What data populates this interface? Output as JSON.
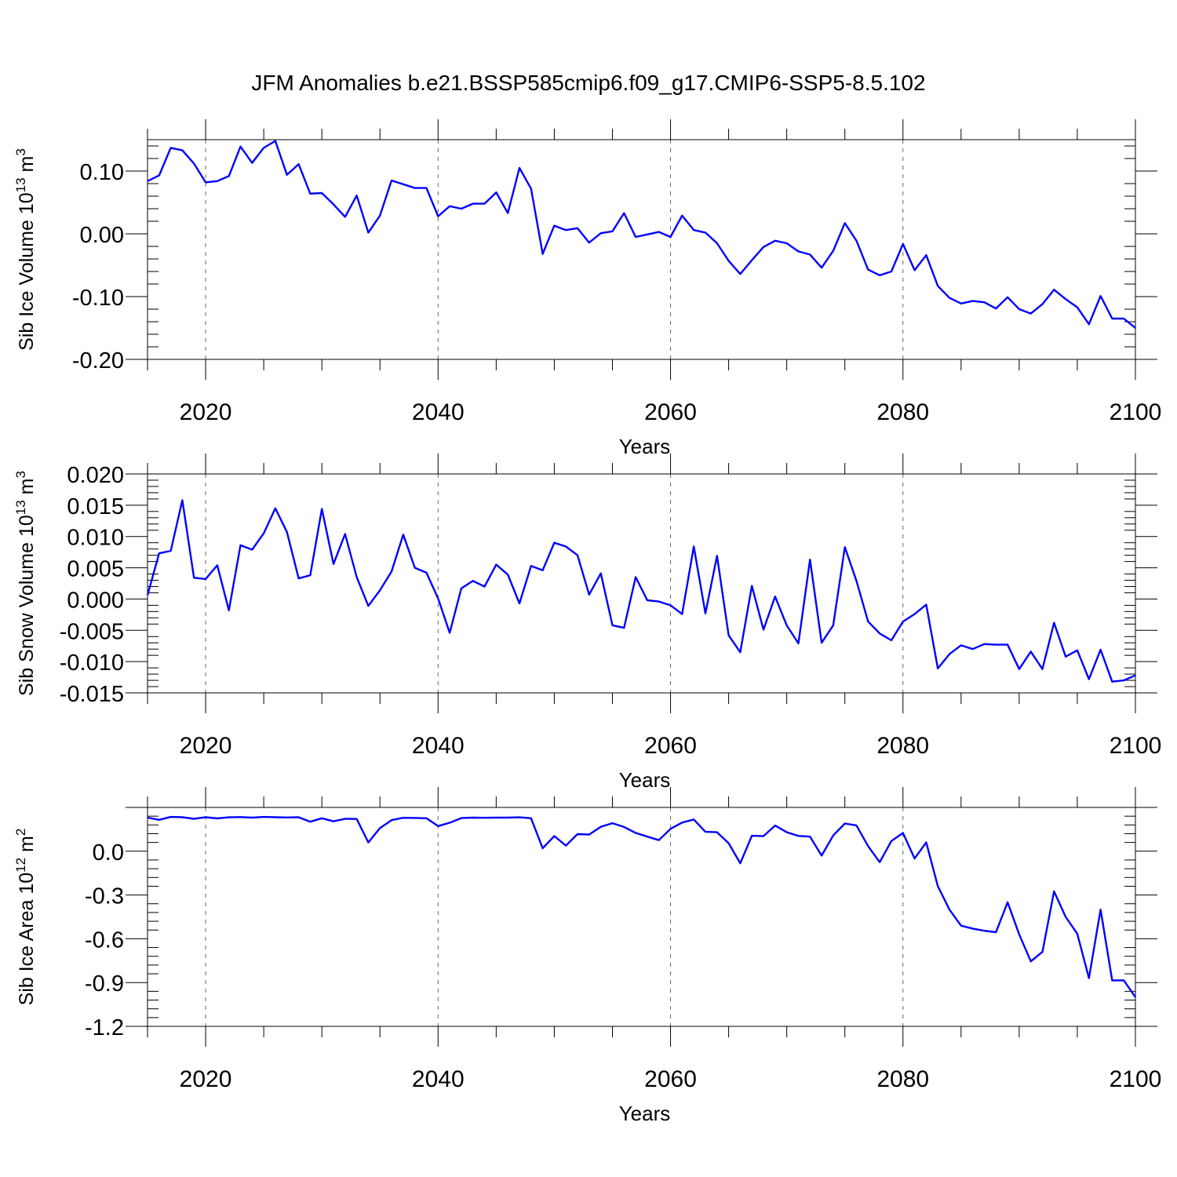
{
  "chart_data": {
    "title": "JFM Anomalies b.e21.BSSP585cmip6.f09_g17.CMIP6-SSP5-8.5.102",
    "line_color": "#0000ff",
    "panels": [
      {
        "type": "line",
        "name": "ice-volume",
        "ylabel": {
          "pre": "Sib Ice Volume 10",
          "exp": "13",
          "unit": " m",
          "unit_exp": "3"
        },
        "xlabel": "Years",
        "xlim": [
          2015,
          2100
        ],
        "ylim": [
          -0.2,
          0.15
        ],
        "xticks": [
          "2020",
          "2040",
          "2060",
          "2080",
          "2100"
        ],
        "yticks": [
          "0.10",
          "0.00",
          "-0.10",
          "-0.20"
        ],
        "years": [
          2015,
          2016,
          2017,
          2018,
          2019,
          2020,
          2021,
          2022,
          2023,
          2024,
          2025,
          2026,
          2027,
          2028,
          2029,
          2030,
          2031,
          2032,
          2033,
          2034,
          2035,
          2036,
          2037,
          2038,
          2039,
          2040,
          2041,
          2042,
          2043,
          2044,
          2045,
          2046,
          2047,
          2048,
          2049,
          2050,
          2051,
          2052,
          2053,
          2054,
          2055,
          2056,
          2057,
          2058,
          2059,
          2060,
          2061,
          2062,
          2063,
          2064,
          2065,
          2066,
          2067,
          2068,
          2069,
          2070,
          2071,
          2072,
          2073,
          2074,
          2075,
          2076,
          2077,
          2078,
          2079,
          2080,
          2081,
          2082,
          2083,
          2084,
          2085,
          2086,
          2087,
          2088,
          2089,
          2090,
          2091,
          2092,
          2093,
          2094,
          2095,
          2096,
          2097,
          2098,
          2099,
          2100
        ],
        "values": [
          0.084,
          0.093,
          0.137,
          0.133,
          0.112,
          0.082,
          0.084,
          0.092,
          0.139,
          0.113,
          0.137,
          0.148,
          0.094,
          0.111,
          0.064,
          0.065,
          0.047,
          0.027,
          0.061,
          0.002,
          0.029,
          0.085,
          0.079,
          0.073,
          0.073,
          0.028,
          0.044,
          0.04,
          0.048,
          0.048,
          0.066,
          0.033,
          0.105,
          0.072,
          -0.032,
          0.013,
          0.006,
          0.009,
          -0.014,
          0.001,
          0.004,
          0.033,
          -0.005,
          -0.001,
          0.003,
          -0.005,
          0.029,
          0.006,
          0.002,
          -0.015,
          -0.043,
          -0.064,
          -0.042,
          -0.021,
          -0.011,
          -0.015,
          -0.028,
          -0.033,
          -0.054,
          -0.027,
          0.017,
          -0.011,
          -0.057,
          -0.066,
          -0.06,
          -0.016,
          -0.058,
          -0.034,
          -0.083,
          -0.102,
          -0.111,
          -0.107,
          -0.109,
          -0.119,
          -0.101,
          -0.12,
          -0.127,
          -0.112,
          -0.089,
          -0.104,
          -0.117,
          -0.144,
          -0.099,
          -0.135,
          -0.135,
          -0.15
        ]
      },
      {
        "type": "line",
        "name": "snow-volume",
        "ylabel": {
          "pre": "Sib Snow Volume 10",
          "exp": "13",
          "unit": " m",
          "unit_exp": "3"
        },
        "xlabel": "Years",
        "xlim": [
          2015,
          2100
        ],
        "ylim": [
          -0.015,
          0.02
        ],
        "xticks": [
          "2020",
          "2040",
          "2060",
          "2080",
          "2100"
        ],
        "yticks": [
          "0.020",
          "0.015",
          "0.010",
          "0.005",
          "0.000",
          "-0.005",
          "-0.010",
          "-0.015"
        ],
        "years": [
          2015,
          2016,
          2017,
          2018,
          2019,
          2020,
          2021,
          2022,
          2023,
          2024,
          2025,
          2026,
          2027,
          2028,
          2029,
          2030,
          2031,
          2032,
          2033,
          2034,
          2035,
          2036,
          2037,
          2038,
          2039,
          2040,
          2041,
          2042,
          2043,
          2044,
          2045,
          2046,
          2047,
          2048,
          2049,
          2050,
          2051,
          2052,
          2053,
          2054,
          2055,
          2056,
          2057,
          2058,
          2059,
          2060,
          2061,
          2062,
          2063,
          2064,
          2065,
          2066,
          2067,
          2068,
          2069,
          2070,
          2071,
          2072,
          2073,
          2074,
          2075,
          2076,
          2077,
          2078,
          2079,
          2080,
          2081,
          2082,
          2083,
          2084,
          2085,
          2086,
          2087,
          2088,
          2089,
          2090,
          2091,
          2092,
          2093,
          2094,
          2095,
          2096,
          2097,
          2098,
          2099,
          2100
        ],
        "values": [
          0.0006,
          0.0073,
          0.0077,
          0.0158,
          0.0034,
          0.0032,
          0.0054,
          -0.0018,
          0.0086,
          0.0079,
          0.0105,
          0.0145,
          0.0107,
          0.0033,
          0.0038,
          0.0144,
          0.0056,
          0.0104,
          0.0035,
          -0.0011,
          0.0014,
          0.0044,
          0.0103,
          0.005,
          0.0042,
          0.0001,
          -0.0054,
          0.0017,
          0.0029,
          0.002,
          0.0055,
          0.0039,
          -0.0007,
          0.0053,
          0.0046,
          0.009,
          0.0084,
          0.007,
          0.0007,
          0.0041,
          -0.0042,
          -0.0046,
          0.0035,
          -0.0002,
          -0.0004,
          -0.001,
          -0.0024,
          0.0084,
          -0.0023,
          0.0069,
          -0.0058,
          -0.0085,
          0.0021,
          -0.0049,
          0.0004,
          -0.0042,
          -0.0071,
          0.0063,
          -0.007,
          -0.0042,
          0.0083,
          0.0029,
          -0.0036,
          -0.0055,
          -0.0066,
          -0.0036,
          -0.0024,
          -0.0009,
          -0.0111,
          -0.0088,
          -0.0074,
          -0.008,
          -0.0072,
          -0.0073,
          -0.0073,
          -0.0112,
          -0.0084,
          -0.0112,
          -0.0038,
          -0.0092,
          -0.0082,
          -0.0128,
          -0.0081,
          -0.0132,
          -0.013,
          -0.0122
        ]
      },
      {
        "type": "line",
        "name": "ice-area",
        "ylabel": {
          "pre": "Sib Ice Area 10",
          "exp": "12",
          "unit": " m",
          "unit_exp": "2"
        },
        "xlabel": "Years",
        "xlim": [
          2015,
          2100
        ],
        "ylim": [
          -1.2,
          0.3
        ],
        "xticks": [
          "2020",
          "2040",
          "2060",
          "2080",
          "2100"
        ],
        "yticks": [
          "0.0",
          "-0.3",
          "-0.6",
          "-0.9",
          "-1.2"
        ],
        "years": [
          2015,
          2016,
          2017,
          2018,
          2019,
          2020,
          2021,
          2022,
          2023,
          2024,
          2025,
          2026,
          2027,
          2028,
          2029,
          2030,
          2031,
          2032,
          2033,
          2034,
          2035,
          2036,
          2037,
          2038,
          2039,
          2040,
          2041,
          2042,
          2043,
          2044,
          2045,
          2046,
          2047,
          2048,
          2049,
          2050,
          2051,
          2052,
          2053,
          2054,
          2055,
          2056,
          2057,
          2058,
          2059,
          2060,
          2061,
          2062,
          2063,
          2064,
          2065,
          2066,
          2067,
          2068,
          2069,
          2070,
          2071,
          2072,
          2073,
          2074,
          2075,
          2076,
          2077,
          2078,
          2079,
          2080,
          2081,
          2082,
          2083,
          2084,
          2085,
          2086,
          2087,
          2088,
          2089,
          2090,
          2091,
          2092,
          2093,
          2094,
          2095,
          2096,
          2097,
          2098,
          2099,
          2100
        ],
        "values": [
          0.23,
          0.215,
          0.235,
          0.233,
          0.222,
          0.233,
          0.225,
          0.232,
          0.234,
          0.23,
          0.235,
          0.233,
          0.231,
          0.233,
          0.202,
          0.226,
          0.205,
          0.222,
          0.221,
          0.06,
          0.158,
          0.213,
          0.229,
          0.228,
          0.226,
          0.172,
          0.195,
          0.227,
          0.23,
          0.229,
          0.23,
          0.23,
          0.232,
          0.226,
          0.02,
          0.104,
          0.038,
          0.117,
          0.114,
          0.167,
          0.192,
          0.166,
          0.125,
          0.1,
          0.076,
          0.153,
          0.196,
          0.217,
          0.133,
          0.13,
          0.055,
          -0.083,
          0.106,
          0.103,
          0.176,
          0.13,
          0.105,
          0.1,
          -0.03,
          0.108,
          0.19,
          0.177,
          0.035,
          -0.075,
          0.07,
          0.125,
          -0.05,
          0.06,
          -0.24,
          -0.4,
          -0.51,
          -0.53,
          -0.545,
          -0.555,
          -0.35,
          -0.57,
          -0.755,
          -0.69,
          -0.275,
          -0.45,
          -0.565,
          -0.87,
          -0.4,
          -0.885,
          -0.885,
          -1.0
        ]
      }
    ]
  }
}
